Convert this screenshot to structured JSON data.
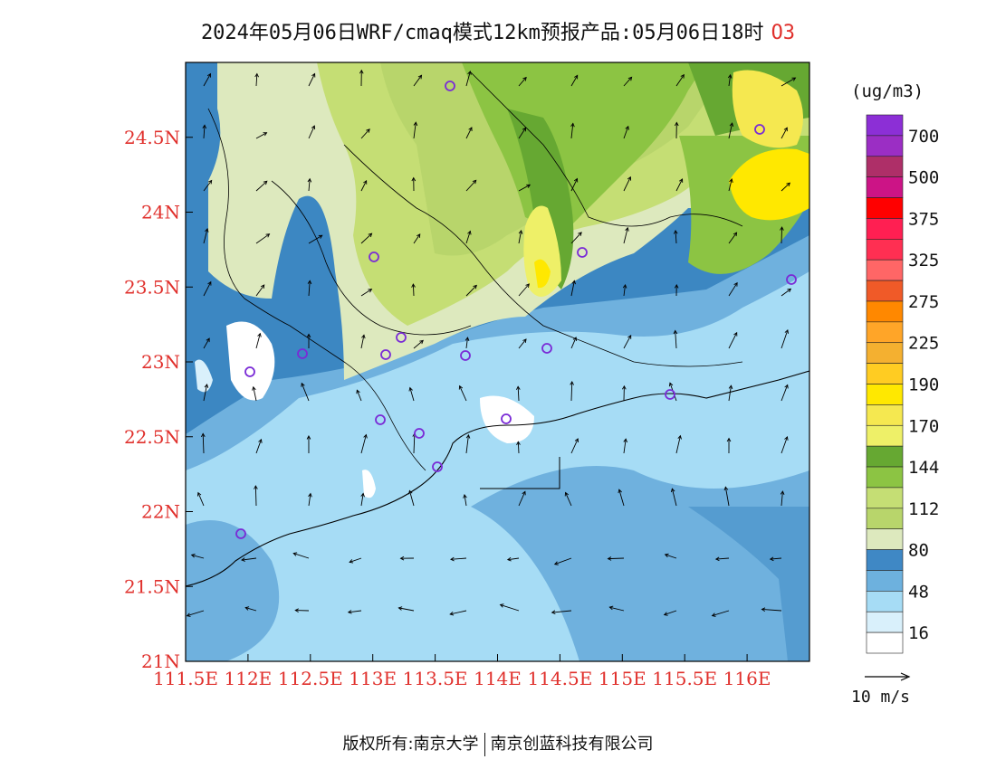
{
  "title": {
    "main": "2024年05月06日WRF/cmaq模式12km预报产品:05月06日18时",
    "species": "O3"
  },
  "colors": {
    "tick_label": "#e0302c",
    "sea_light": "#a6dcf5",
    "sea_mid": "#6fb1de",
    "land_low": "#3c87c2"
  },
  "map": {
    "lat_ticks": [
      "24.5N",
      "24N",
      "23.5N",
      "23N",
      "22.5N",
      "22N",
      "21.5N",
      "21N"
    ],
    "lon_ticks": [
      "111.5E",
      "112E",
      "112.5E",
      "113E",
      "113.5E",
      "114E",
      "114.5E",
      "115E",
      "115.5E",
      "116E"
    ],
    "lon_range": [
      111.5,
      116.5
    ],
    "lat_range": [
      21,
      25
    ]
  },
  "colorbar": {
    "unit": "(ug/m3)",
    "labels": [
      "700",
      "500",
      "375",
      "325",
      "275",
      "225",
      "190",
      "170",
      "144",
      "112",
      "80",
      "48",
      "16"
    ],
    "colors_top_to_bottom": [
      "#8c2fd6",
      "#9b2ec4",
      "#ae2f68",
      "#cc1486",
      "#ff0000",
      "#ff1f52",
      "#ff2f52",
      "#ff6666",
      "#f05a28",
      "#ff8800",
      "#ffa528",
      "#f4b030",
      "#ffcc22",
      "#ffe800",
      "#f5e850",
      "#eef068",
      "#66a832",
      "#8cc443",
      "#c5de74",
      "#b8d56b",
      "#dde9be",
      "#3f88c5",
      "#6db1de",
      "#a6dcf5",
      "#d9f0fb",
      "#ffffff"
    ]
  },
  "wind_reference": {
    "label": "10 m/s"
  },
  "footer": {
    "left": "版权所有:南京大学",
    "right": "南京创蓝科技有限公司"
  }
}
